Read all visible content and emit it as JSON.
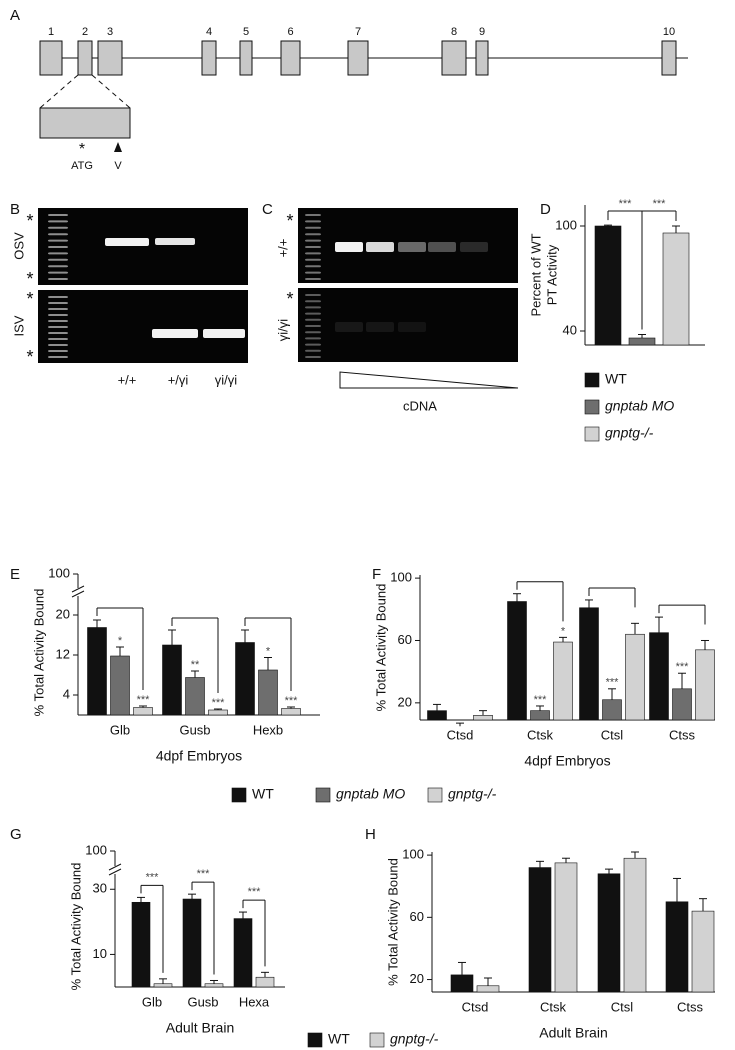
{
  "gene_diagram": {
    "panel": "A",
    "exons": [
      "1",
      "2",
      "3",
      "4",
      "5",
      "6",
      "7",
      "8",
      "9",
      "10"
    ],
    "start_marker": "*",
    "start_label": "ATG",
    "site_label": "V"
  },
  "gel_b": {
    "panel": "B",
    "rows": [
      "OSV",
      "ISV"
    ],
    "lanes": [
      "+/+",
      "+/γi",
      "γi/γi"
    ],
    "marker": "*"
  },
  "gel_c": {
    "panel": "C",
    "rows": [
      "+/+",
      "γi/γi"
    ],
    "x_label": "cDNA",
    "marker": "*"
  },
  "chart_data": [
    {
      "type": "bar",
      "panel": "D",
      "y_label": [
        "Percent of WT",
        "PT Activity"
      ],
      "series": [
        {
          "name": "WT",
          "color": "#111111",
          "values": [
            100
          ],
          "errors": [
            0.5
          ]
        },
        {
          "name": "gnptab MO",
          "color": "#6e6e6e",
          "values": [
            36
          ],
          "errors": [
            2
          ]
        },
        {
          "name": "gnptg-/-",
          "color": "#d2d2d2",
          "values": [
            96
          ],
          "errors": [
            4
          ]
        }
      ],
      "comparison_labels": [
        "***",
        "***"
      ],
      "ylim": [
        32,
        112
      ],
      "yticks": [
        40,
        100
      ]
    },
    {
      "type": "bar",
      "panel": "E",
      "y_label": "% Total Activity Bound",
      "x_label": "4dpf Embryos",
      "categories": [
        "Glb",
        "Gusb",
        "Hexb"
      ],
      "series": [
        {
          "name": "WT",
          "color": "#111111",
          "values": [
            17.5,
            14,
            14.5
          ],
          "errors": [
            1.5,
            3,
            2.5
          ]
        },
        {
          "name": "gnptab MO",
          "color": "#6e6e6e",
          "values": [
            11.8,
            7.5,
            9
          ],
          "errors": [
            1.8,
            1.3,
            2.5
          ],
          "sig": [
            "*",
            "**",
            "*"
          ]
        },
        {
          "name": "gnptg-/-",
          "color": "#d2d2d2",
          "values": [
            1.5,
            1,
            1.3
          ],
          "errors": [
            0.3,
            0.2,
            0.3
          ],
          "sig": [
            "***",
            "***",
            "***"
          ]
        }
      ],
      "ylim": [
        0,
        21
      ],
      "yticks": [
        4,
        12,
        20
      ],
      "upper_tick": 100
    },
    {
      "type": "bar",
      "panel": "F",
      "y_label": "% Total Activity Bound",
      "x_label": "4dpf Embryos",
      "categories": [
        "Ctsd",
        "Ctsk",
        "Ctsl",
        "Ctss"
      ],
      "series": [
        {
          "color": "#111111",
          "values": [
            15,
            85,
            81,
            65
          ],
          "errors": [
            4,
            5,
            5,
            10
          ]
        },
        {
          "color": "#6e6e6e",
          "values": [
            5,
            15,
            22,
            29
          ],
          "errors": [
            2,
            3,
            7,
            10
          ],
          "sig": [
            null,
            "***",
            "***",
            "***"
          ]
        },
        {
          "color": "#d2d2d2",
          "values": [
            12,
            59,
            64,
            54
          ],
          "errors": [
            3,
            3,
            7,
            6
          ],
          "sig": [
            null,
            "*",
            null,
            null
          ]
        }
      ],
      "ylim": [
        9,
        102
      ],
      "yticks": [
        20,
        60,
        100
      ]
    },
    {
      "type": "bar",
      "panel": "G",
      "y_label": "% Total Activity Bound",
      "x_label": "Adult Brain",
      "categories": [
        "Glb",
        "Gusb",
        "Hexa"
      ],
      "series": [
        {
          "name": "WT",
          "color": "#111111",
          "values": [
            26,
            27,
            21
          ],
          "errors": [
            1.5,
            1.5,
            2
          ]
        },
        {
          "name": "gnptg-/-",
          "color": "#d2d2d2",
          "values": [
            1,
            1,
            3
          ],
          "errors": [
            1.5,
            1,
            1.5
          ],
          "sig": [
            "***",
            "***",
            "***"
          ]
        }
      ],
      "ylim": [
        0,
        31
      ],
      "yticks": [
        10,
        30
      ],
      "upper_tick": 100
    },
    {
      "type": "bar",
      "panel": "H",
      "y_label": "% Total Activity Bound",
      "x_label": "Adult Brain",
      "categories": [
        "Ctsd",
        "Ctsk",
        "Ctsl",
        "Ctss"
      ],
      "series": [
        {
          "color": "#111111",
          "values": [
            23,
            92,
            88,
            70
          ],
          "errors": [
            8,
            4,
            3,
            15
          ]
        },
        {
          "color": "#d2d2d2",
          "values": [
            16,
            95,
            98,
            64
          ],
          "errors": [
            5,
            3,
            4,
            8
          ]
        }
      ],
      "ylim": [
        12,
        102
      ],
      "yticks": [
        20,
        60,
        100
      ]
    }
  ]
}
